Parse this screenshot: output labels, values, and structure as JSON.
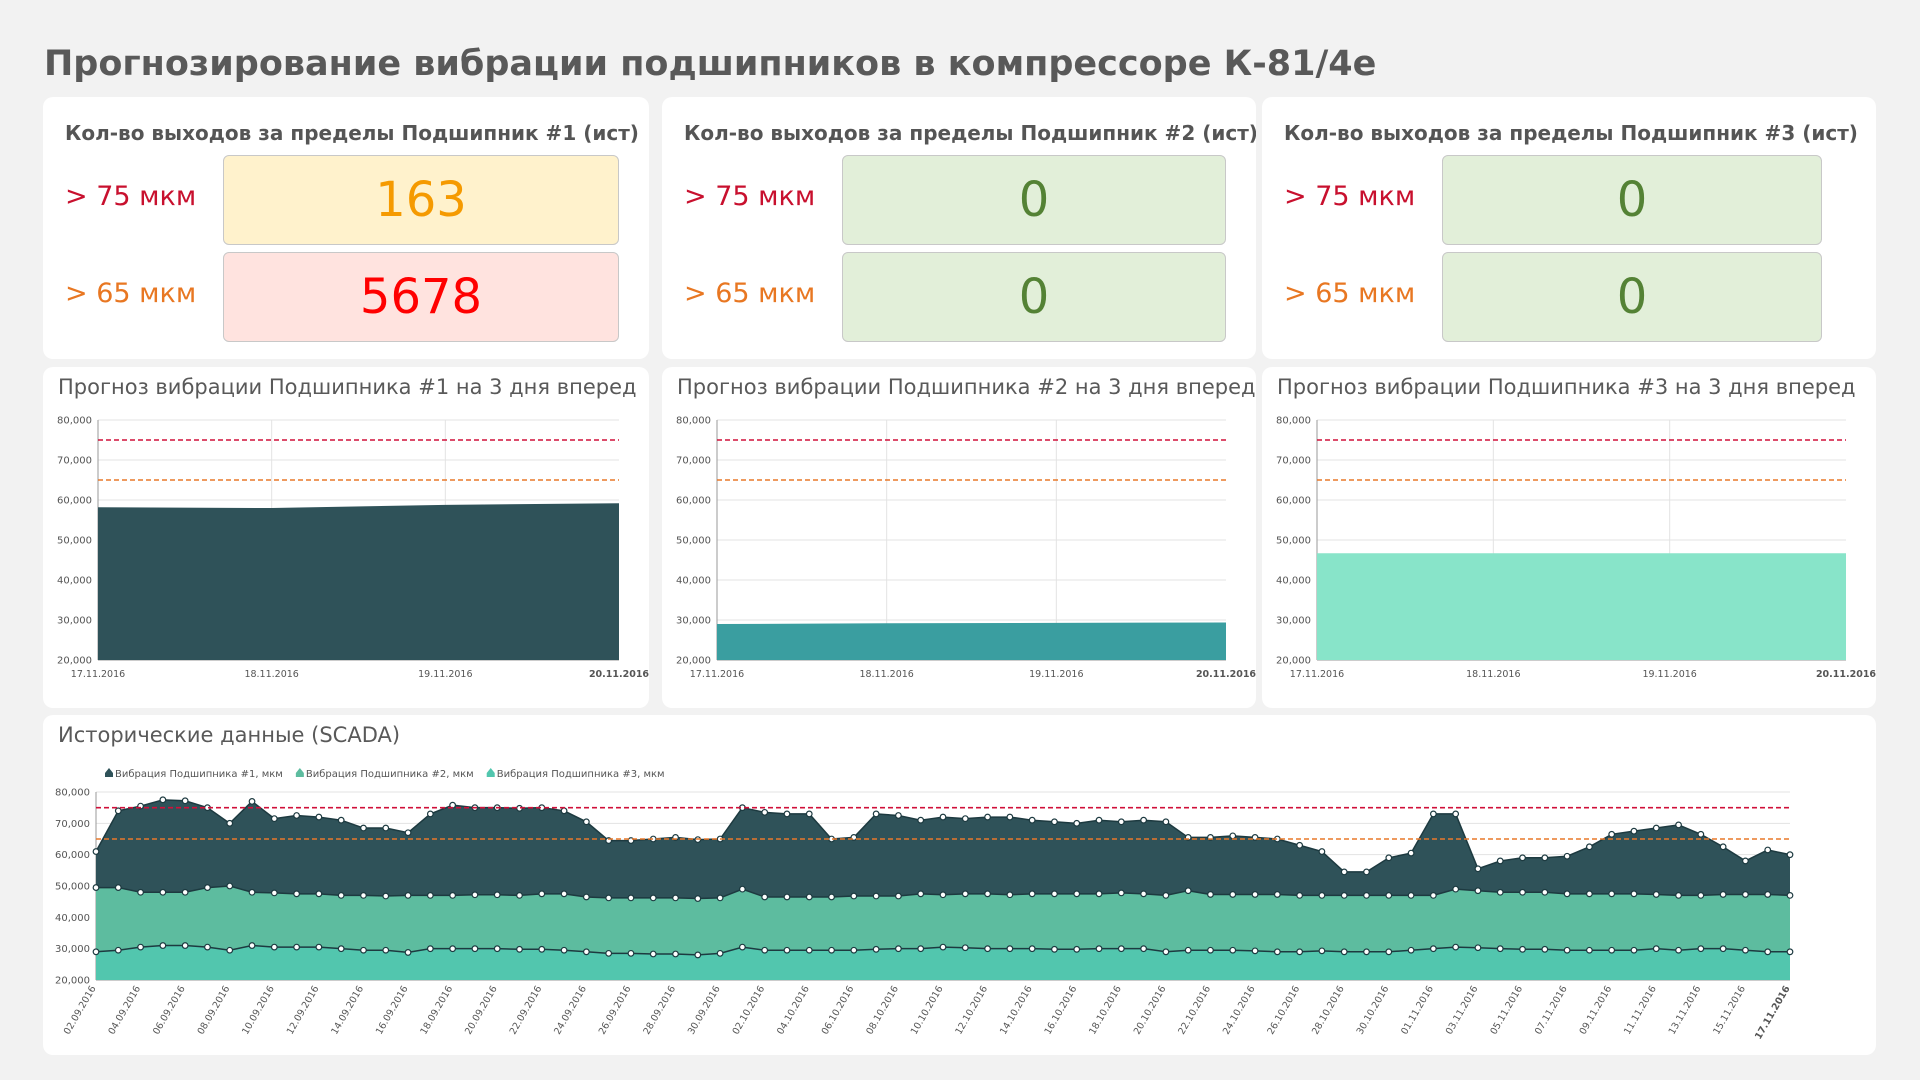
{
  "title": "Прогнозирование вибрации подшипников в компрессоре К-81/4е",
  "kpis": [
    {
      "title": "Кол-во выходов за пределы Подшипник #1 (ист)",
      "rows": [
        {
          "label": "> 75 мкм",
          "value": 163,
          "color": "#f59a00",
          "bg": "#fff2cc"
        },
        {
          "label": "> 65 мкм",
          "value": 5678,
          "color": "#ff0000",
          "bg": "#ffe3df"
        }
      ]
    },
    {
      "title": "Кол-во выходов за пределы Подшипник #2 (ист)",
      "rows": [
        {
          "label": "> 75 мкм",
          "value": 0,
          "color": "#548235",
          "bg": "#e2efd9"
        },
        {
          "label": "> 65 мкм",
          "value": 0,
          "color": "#548235",
          "bg": "#e2efd9"
        }
      ]
    },
    {
      "title": "Кол-во выходов за пределы Подшипник #3 (ист)",
      "rows": [
        {
          "label": "> 75 мкм",
          "value": 0,
          "color": "#548235",
          "bg": "#e2efd9"
        },
        {
          "label": "> 65 мкм",
          "value": 0,
          "color": "#548235",
          "bg": "#e2efd9"
        }
      ]
    }
  ],
  "chart_data": [
    {
      "type": "area",
      "title": "Прогноз вибрации Подшипника #1 на 3 дня вперед",
      "categories": [
        "17.11.2016",
        "18.11.2016",
        "19.11.2016",
        "20.11.2016"
      ],
      "values": [
        58000,
        57800,
        58600,
        59000
      ],
      "color": "#2f5259",
      "ylim": [
        20000,
        80000
      ],
      "yticks": [
        {
          "value": 20000,
          "label": "20,000"
        },
        {
          "value": 30000,
          "label": "30,000"
        },
        {
          "value": 40000,
          "label": "40,000"
        },
        {
          "value": 50000,
          "label": "50,000"
        },
        {
          "value": 60000,
          "label": "60,000"
        },
        {
          "value": 70000,
          "label": "70,000"
        },
        {
          "value": 80000,
          "label": "80,000"
        }
      ],
      "reference_lines": [
        {
          "value": 75000,
          "color": "#d0103a"
        },
        {
          "value": 65000,
          "color": "#e8782a"
        }
      ],
      "grid": true
    },
    {
      "type": "area",
      "title": "Прогноз вибрации Подшипника #2 на 3 дня вперед",
      "categories": [
        "17.11.2016",
        "18.11.2016",
        "19.11.2016",
        "20.11.2016"
      ],
      "values": [
        28800,
        29000,
        29100,
        29200
      ],
      "color": "#3a9ea0",
      "ylim": [
        20000,
        80000
      ],
      "yticks": [
        {
          "value": 20000,
          "label": "20,000"
        },
        {
          "value": 30000,
          "label": "30,000"
        },
        {
          "value": 40000,
          "label": "40,000"
        },
        {
          "value": 50000,
          "label": "50,000"
        },
        {
          "value": 60000,
          "label": "60,000"
        },
        {
          "value": 70000,
          "label": "70,000"
        },
        {
          "value": 80000,
          "label": "80,000"
        }
      ],
      "reference_lines": [
        {
          "value": 75000,
          "color": "#d0103a"
        },
        {
          "value": 65000,
          "color": "#e8782a"
        }
      ],
      "grid": true
    },
    {
      "type": "area",
      "title": "Прогноз вибрации Подшипника #3 на 3 дня вперед",
      "categories": [
        "17.11.2016",
        "18.11.2016",
        "19.11.2016",
        "20.11.2016"
      ],
      "values": [
        46500,
        46500,
        46500,
        46500
      ],
      "color": "#88e4c9",
      "ylim": [
        20000,
        80000
      ],
      "yticks": [
        {
          "value": 20000,
          "label": "20,000"
        },
        {
          "value": 30000,
          "label": "30,000"
        },
        {
          "value": 40000,
          "label": "40,000"
        },
        {
          "value": 50000,
          "label": "50,000"
        },
        {
          "value": 60000,
          "label": "60,000"
        },
        {
          "value": 70000,
          "label": "70,000"
        },
        {
          "value": 80000,
          "label": "80,000"
        }
      ],
      "reference_lines": [
        {
          "value": 75000,
          "color": "#d0103a"
        },
        {
          "value": 65000,
          "color": "#e8782a"
        }
      ],
      "grid": true
    },
    {
      "type": "area",
      "title": "Исторические данные (SCADA)",
      "categories": [
        "02.09.2016",
        null,
        "04.09.2016",
        null,
        "06.09.2016",
        null,
        "08.09.2016",
        null,
        "10.09.2016",
        null,
        "12.09.2016",
        null,
        "14.09.2016",
        null,
        "16.09.2016",
        null,
        "18.09.2016",
        null,
        "20.09.2016",
        null,
        "22.09.2016",
        null,
        "24.09.2016",
        null,
        "26.09.2016",
        null,
        "28.09.2016",
        null,
        "30.09.2016",
        null,
        "02.10.2016",
        null,
        "04.10.2016",
        null,
        "06.10.2016",
        null,
        "08.10.2016",
        null,
        "10.10.2016",
        null,
        "12.10.2016",
        null,
        "14.10.2016",
        null,
        "16.10.2016",
        null,
        "18.10.2016",
        null,
        "20.10.2016",
        null,
        "22.10.2016",
        null,
        "24.10.2016",
        null,
        "26.10.2016",
        null,
        "28.10.2016",
        null,
        "30.10.2016",
        null,
        "01.11.2016",
        null,
        "03.11.2016",
        null,
        "05.11.2016",
        null,
        "07.11.2016",
        null,
        "09.11.2016",
        null,
        "11.11.2016",
        null,
        "13.11.2016",
        null,
        "15.11.2016",
        null,
        "17.11.2016"
      ],
      "series": [
        {
          "name": "Вибрация Подшипника #1, мкм",
          "color": "#2f5259",
          "values": [
            61000,
            74000,
            75500,
            77500,
            77200,
            75000,
            70000,
            77000,
            71500,
            72500,
            72000,
            71000,
            68500,
            68500,
            67000,
            73000,
            75800,
            75000,
            75000,
            74800,
            75000,
            74000,
            70500,
            64500,
            64500,
            65000,
            65500,
            64800,
            65000,
            75000,
            73500,
            73000,
            73000,
            65000,
            65500,
            73000,
            72500,
            71000,
            72000,
            71500,
            72000,
            72000,
            71000,
            70500,
            70000,
            71000,
            70500,
            71000,
            70500,
            65500,
            65500,
            66000,
            65500,
            65000,
            63000,
            61000,
            54500,
            54500,
            59000,
            60500,
            73000,
            73000,
            55500,
            58000,
            59000,
            59000,
            59500,
            62500,
            66500,
            67500,
            68500,
            69500,
            66500,
            62500,
            58000,
            61500,
            60000
          ]
        },
        {
          "name": "Вибрация Подшипника #2, мкм",
          "color": "#5dbc9f",
          "values": [
            49500,
            49500,
            48000,
            48000,
            48000,
            49500,
            50000,
            48000,
            47800,
            47500,
            47500,
            47000,
            47000,
            46800,
            47000,
            47000,
            47000,
            47200,
            47200,
            47000,
            47500,
            47500,
            46500,
            46200,
            46200,
            46200,
            46200,
            46000,
            46200,
            49000,
            46500,
            46500,
            46500,
            46500,
            46800,
            46800,
            46800,
            47500,
            47200,
            47500,
            47500,
            47200,
            47500,
            47500,
            47500,
            47500,
            47800,
            47500,
            47000,
            48500,
            47300,
            47300,
            47300,
            47300,
            47000,
            47000,
            47000,
            47000,
            47000,
            47000,
            47000,
            49000,
            48500,
            48000,
            48000,
            48000,
            47500,
            47500,
            47500,
            47500,
            47300,
            47000,
            47000,
            47300,
            47300,
            47300,
            47000
          ]
        },
        {
          "name": "Вибрация Подшипника #3, мкм",
          "color": "#52c6ae",
          "values": [
            29000,
            29500,
            30500,
            31000,
            31000,
            30500,
            29500,
            31000,
            30500,
            30500,
            30500,
            30000,
            29500,
            29500,
            28800,
            30000,
            30000,
            30000,
            30000,
            29800,
            29800,
            29500,
            29000,
            28500,
            28500,
            28300,
            28300,
            28000,
            28500,
            30500,
            29500,
            29500,
            29500,
            29500,
            29500,
            29800,
            30000,
            30000,
            30500,
            30300,
            30000,
            30000,
            30000,
            29800,
            29800,
            30000,
            30000,
            30000,
            29000,
            29500,
            29500,
            29500,
            29300,
            29000,
            29000,
            29300,
            29000,
            29000,
            29000,
            29500,
            30000,
            30500,
            30300,
            30000,
            29800,
            29800,
            29500,
            29500,
            29500,
            29500,
            30000,
            29500,
            30000,
            30000,
            29500,
            29000,
            29000
          ]
        }
      ],
      "ylim": [
        20000,
        80000
      ],
      "yticks": [
        {
          "value": 20000,
          "label": "20,000"
        },
        {
          "value": 30000,
          "label": "30,000"
        },
        {
          "value": 40000,
          "label": "40,000"
        },
        {
          "value": 50000,
          "label": "50,000"
        },
        {
          "value": 60000,
          "label": "60,000"
        },
        {
          "value": 70000,
          "label": "70,000"
        },
        {
          "value": 80000,
          "label": "80,000"
        }
      ],
      "reference_lines": [
        {
          "value": 75000,
          "color": "#d0103a"
        },
        {
          "value": 65000,
          "color": "#e8782a"
        }
      ],
      "grid": true,
      "legend": "top-left",
      "markers": true
    }
  ]
}
